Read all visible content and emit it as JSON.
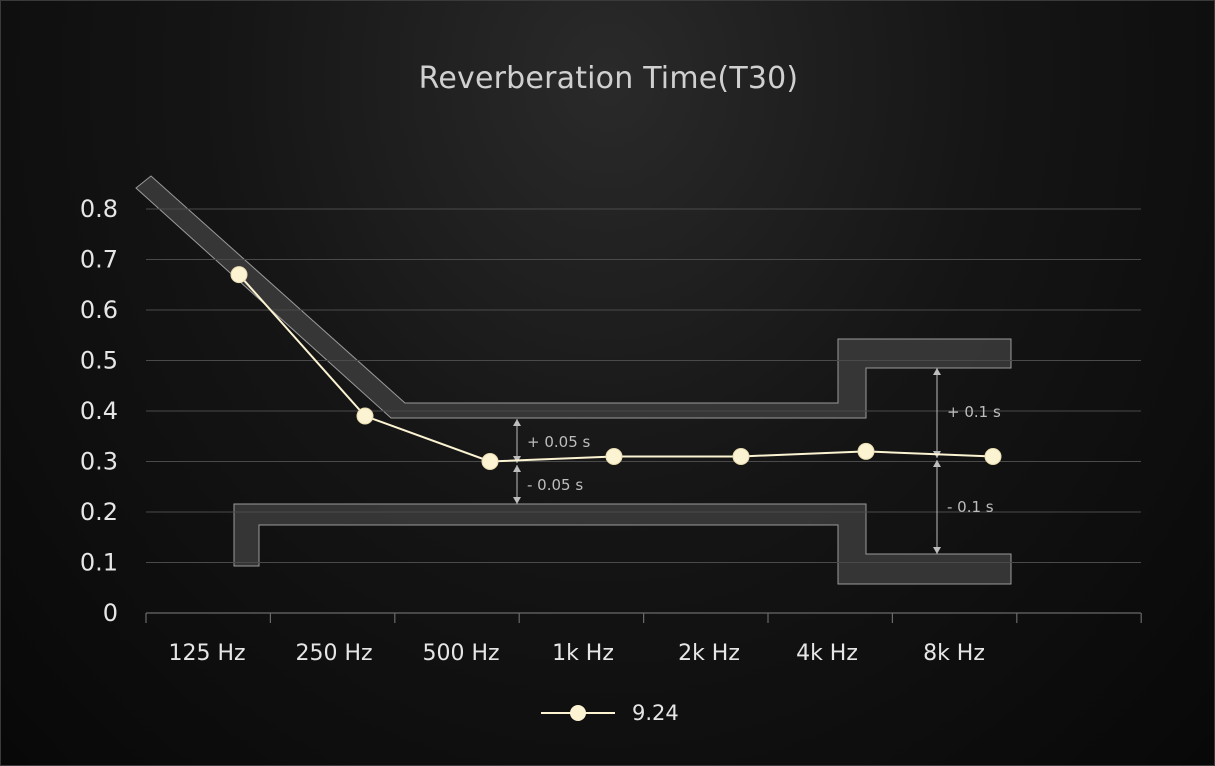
{
  "chart_data": {
    "type": "line",
    "title": "Reverberation Time(T30)",
    "xlabel": "",
    "ylabel": "",
    "categories": [
      "125 Hz",
      "250 Hz",
      "500 Hz",
      "1k Hz",
      "2k Hz",
      "4k Hz",
      "8k Hz"
    ],
    "y_ticks": [
      "0",
      "0.1",
      "0.2",
      "0.3",
      "0.4",
      "0.5",
      "0.6",
      "0.7",
      "0.8"
    ],
    "ylim": [
      0,
      0.8
    ],
    "grid": true,
    "legend_position": "bottom-center",
    "series": [
      {
        "name": "9.24",
        "values": [
          0.67,
          0.39,
          0.3,
          0.31,
          0.31,
          0.32,
          0.31
        ],
        "color": "#fbf3d2"
      }
    ],
    "tolerance_annotations": [
      "+ 0.05 s",
      "- 0.05 s",
      "+ 0.1 s",
      "- 0.1 s"
    ],
    "colors": {
      "background": "#0d0d0d",
      "band_fill": "#3a3a3a",
      "band_edge": "#9a9a9a",
      "grid": "#4a4a4a",
      "text": "#e6e6e6"
    }
  }
}
